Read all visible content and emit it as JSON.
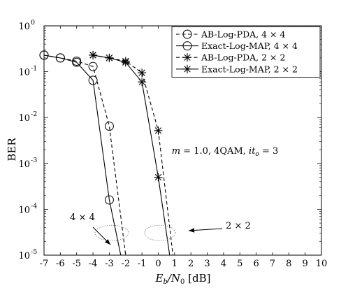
{
  "chart_data": {
    "type": "line",
    "xlabel": "E_b/N_0 [dB]",
    "xlabel_parts": {
      "main": "E",
      "sub1": "b",
      "mid": "/N",
      "sub2": "0",
      "unit": " [dB]"
    },
    "ylabel": "BER",
    "xlim": [
      -7,
      10
    ],
    "ylim": [
      1e-05,
      1
    ],
    "y_scale": "log",
    "x_ticks": [
      -7,
      -6,
      -5,
      -4,
      -3,
      -2,
      -1,
      0,
      1,
      2,
      3,
      4,
      5,
      6,
      7,
      8,
      9,
      10
    ],
    "y_ticks": [
      {
        "value": 1,
        "exp": "0"
      },
      {
        "value": 0.1,
        "exp": "-1"
      },
      {
        "value": 0.01,
        "exp": "-2"
      },
      {
        "value": 0.001,
        "exp": "-3"
      },
      {
        "value": 0.0001,
        "exp": "-4"
      },
      {
        "value": 1e-05,
        "exp": "-5"
      }
    ],
    "grid": false,
    "legend_position": "top-right",
    "series": [
      {
        "name": "AB-Log-PDA, 4 × 4",
        "line": "dashed",
        "marker": "circle",
        "x": [
          -7,
          -6,
          -5,
          -4,
          -3,
          -2
        ],
        "y": [
          0.23,
          0.2,
          0.17,
          0.13,
          0.0065,
          1e-05
        ]
      },
      {
        "name": "Exact-Log-MAP, 4 × 4",
        "line": "solid",
        "marker": "circle",
        "x": [
          -7,
          -6,
          -5,
          -4,
          -3,
          -2.3
        ],
        "y": [
          0.23,
          0.2,
          0.16,
          0.065,
          0.00016,
          1e-05
        ]
      },
      {
        "name": "AB-Log-PDA, 2 × 2",
        "line": "dashed",
        "marker": "star",
        "x": [
          -4,
          -3,
          -2,
          -1,
          0,
          0.9
        ],
        "y": [
          0.23,
          0.2,
          0.17,
          0.095,
          0.0052,
          1e-05
        ]
      },
      {
        "name": "Exact-Log-MAP, 2 × 2",
        "line": "solid",
        "marker": "star",
        "x": [
          -4,
          -3,
          -2,
          -1,
          0,
          0.7
        ],
        "y": [
          0.23,
          0.2,
          0.16,
          0.06,
          0.0005,
          1e-05
        ]
      }
    ],
    "annotations": [
      {
        "text": "m = 1.0, 4QAM, it_o = 3"
      },
      {
        "text": "4 × 4"
      },
      {
        "text": "2 × 2"
      }
    ],
    "annotation_parts": {
      "m": "m",
      "eq1": " = 1.0, 4QAM, ",
      "it": "it",
      "o": "o",
      "eq2": " = 3",
      "label4": "4 × 4",
      "label2": "2 × 2"
    }
  }
}
